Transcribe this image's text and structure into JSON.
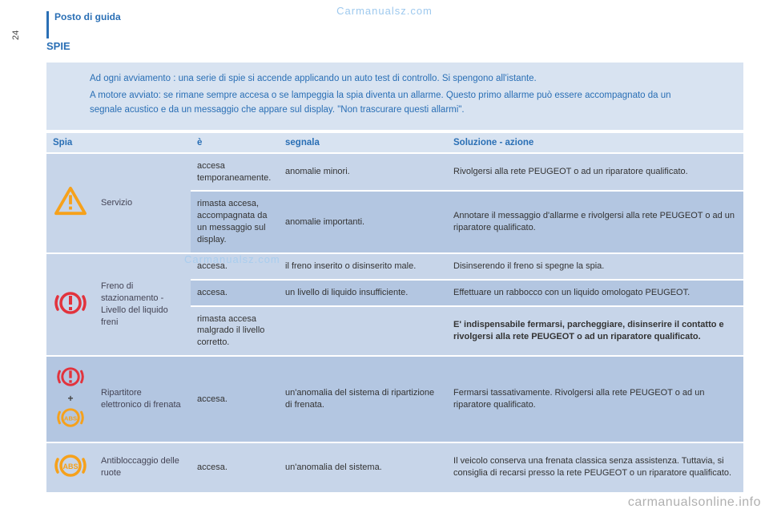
{
  "page_number": "24",
  "section_header": "Posto di guida",
  "title": "SPIE",
  "watermark": "Carmanualsz.com",
  "footer_watermark": "carmanualsonline.info",
  "intro": {
    "p1": "Ad ogni avviamento : una serie di spie si accende applicando un auto test di controllo. Si spengono all'istante.",
    "p2": "A motore avviato: se rimane sempre accesa o se lampeggia la spia diventa un allarme. Questo primo allarme può essere accompagnato da un segnale acustico e da un messaggio che appare sul display. \"Non trascurare questi allarmi\"."
  },
  "columns": {
    "c1": "Spia",
    "c2": "è",
    "c3": "segnala",
    "c4": "Soluzione - azione"
  },
  "colors": {
    "blue": "#2a6fb5",
    "row_a": "#c7d5e9",
    "row_b": "#b3c6e1",
    "intro_bg": "#d8e3f1",
    "warning_orange": "#f6a11b",
    "alert_red": "#e2333d",
    "abs_orange": "#f6a11b"
  },
  "groups": [
    {
      "icon": "warning-triangle",
      "name": "Servizio",
      "rows": [
        {
          "shade": "a",
          "state": "accesa temporaneamente.",
          "signal": "anomalie minori.",
          "action": "Rivolgersi alla rete PEUGEOT o ad un riparatore qualificato."
        },
        {
          "shade": "b",
          "state": "rimasta accesa, accompagnata da un messaggio sul display.",
          "signal": "anomalie importanti.",
          "action": "Annotare il messaggio d'allarme e rivolgersi alla rete PEUGEOT o ad un riparatore qualificato."
        }
      ]
    },
    {
      "icon": "brake-circle",
      "name": "Freno di stazionamento - Livello del liquido freni",
      "rows": [
        {
          "shade": "a",
          "state": "accesa.",
          "signal": "il freno inserito o disinserito male.",
          "action": "Disinserendo il freno si spegne la spia."
        },
        {
          "shade": "b",
          "state": "accesa.",
          "signal": "un livello di liquido insufficiente.",
          "action": "Effettuare un rabbocco con un liquido omologato PEUGEOT."
        },
        {
          "shade": "a",
          "state": "rimasta accesa malgrado il livello corretto.",
          "signal": "",
          "action_bold": "E' indispensabile fermarsi, parcheggiare, disinserire il contatto e rivolgersi alla rete PEUGEOT o ad un riparatore qualificato."
        }
      ]
    },
    {
      "icon": "brake-plus-abs",
      "name": "Ripartitore elettronico di frenata",
      "rows": [
        {
          "shade": "b",
          "state": "accesa.",
          "signal": "un'anomalia del sistema di ripartizione di frenata.",
          "action": "Fermarsi tassativamente. Rivolgersi alla rete PEUGEOT o ad un riparatore qualificato."
        }
      ]
    },
    {
      "icon": "abs-circle",
      "name": "Antibloccaggio delle ruote",
      "rows": [
        {
          "shade": "a",
          "state": "accesa.",
          "signal": "un'anomalia del sistema.",
          "action": "Il veicolo conserva una frenata classica senza assistenza. Tuttavia, si consiglia di recarsi presso la rete PEUGEOT o un riparatore qualificato."
        }
      ]
    }
  ]
}
